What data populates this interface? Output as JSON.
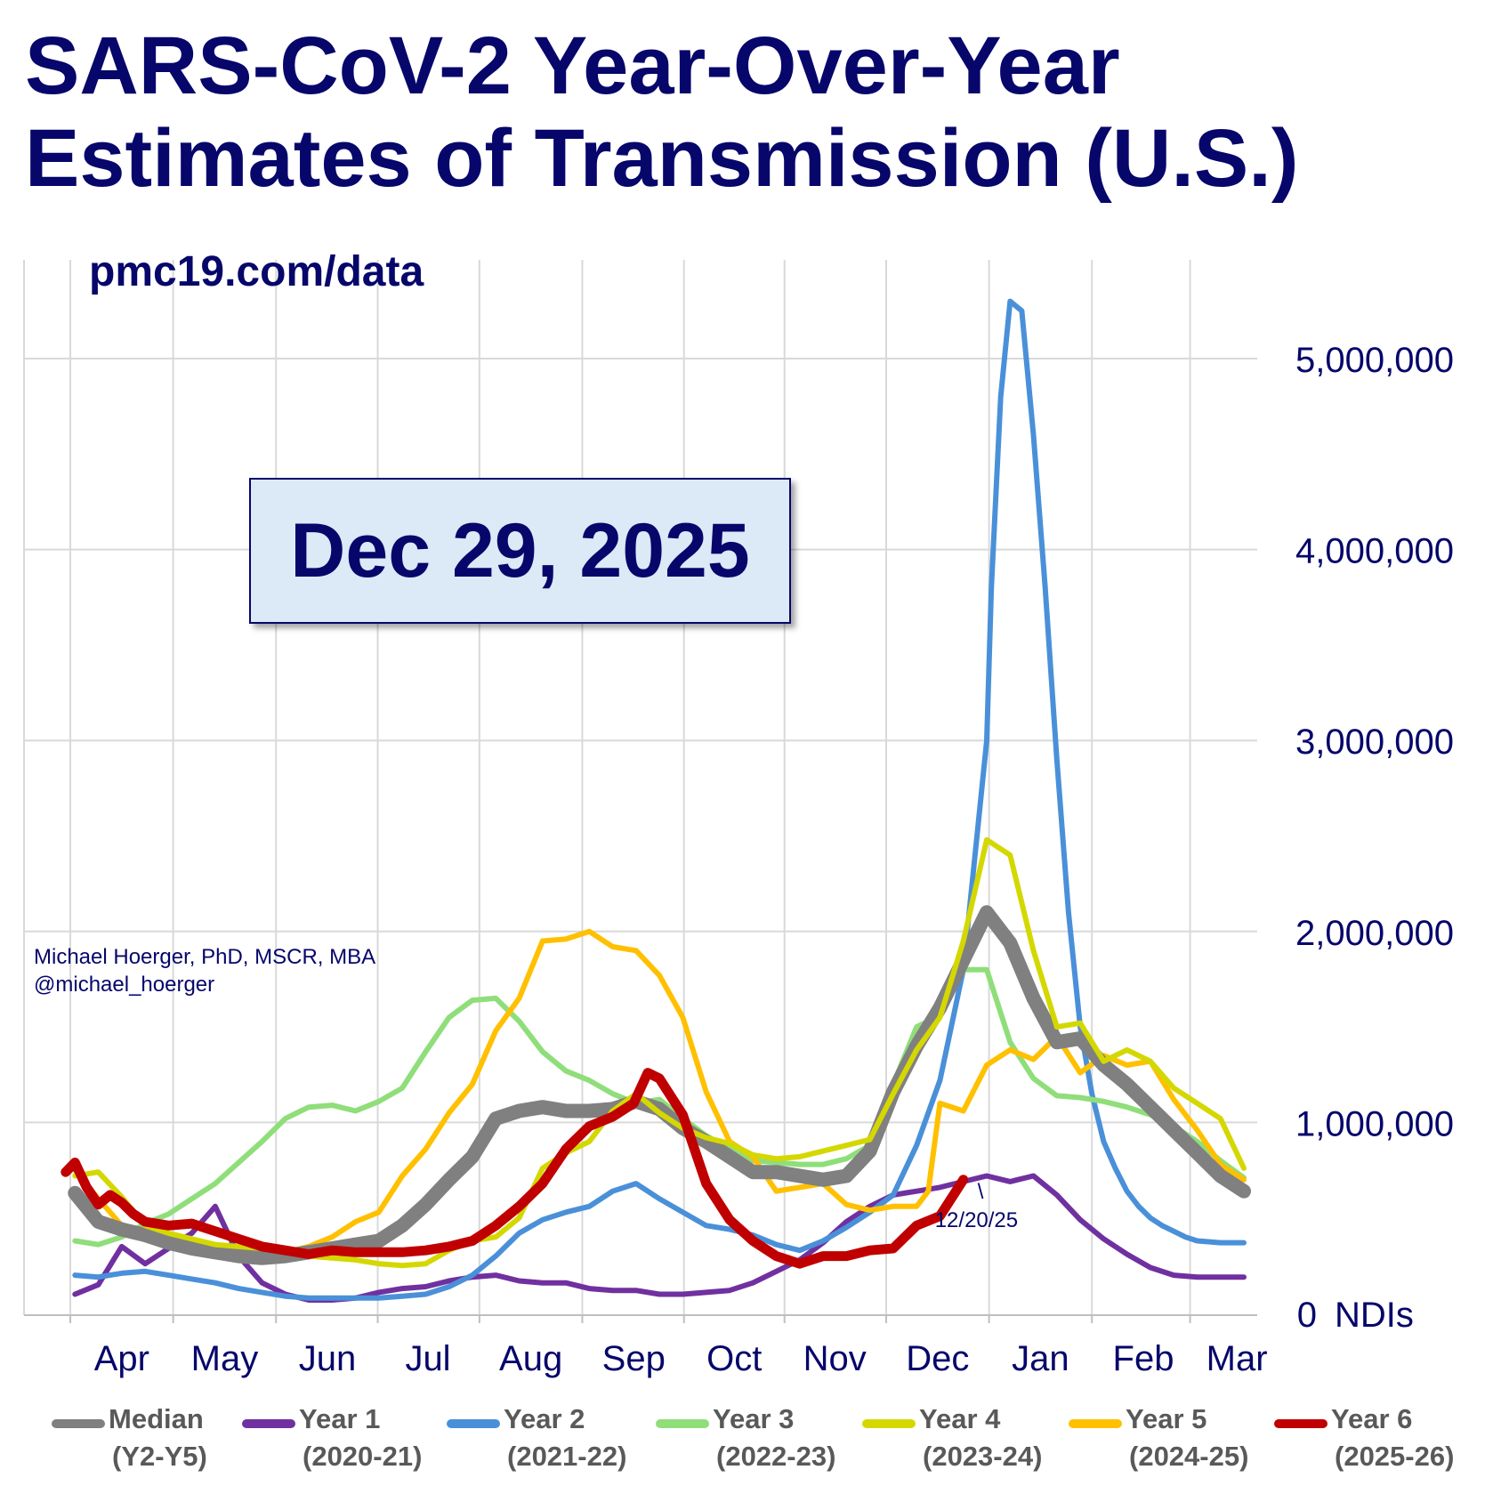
{
  "title_line1": "SARS-CoV-2 Year-Over-Year",
  "title_line2": "Estimates of Transmission (U.S.)",
  "subtitle": "pmc19.com/data",
  "date_box": "Dec 29, 2025",
  "author_line1": "Michael Hoerger, PhD, MSCR, MBA",
  "author_line2": "@michael_hoerger",
  "annotation": {
    "tick": "\\",
    "text": "12/20/25"
  },
  "chart_data": {
    "type": "line",
    "ylabel": "",
    "y_unit_label": "NDIs",
    "ylim": [
      0,
      5000000
    ],
    "y_ticks": [
      0,
      1000000,
      2000000,
      3000000,
      4000000,
      5000000
    ],
    "y_tick_labels": [
      "0",
      "1,000,000",
      "2,000,000",
      "3,000,000",
      "4,000,000",
      "5,000,000"
    ],
    "x_range_weeks": [
      0,
      51
    ],
    "x_tick_positions_weeks": [
      3,
      7.4,
      11.8,
      16.1,
      20.5,
      24.9,
      29.2,
      33.5,
      37.9,
      42.3,
      46.7,
      50.7
    ],
    "x_tick_labels": [
      "Apr",
      "May",
      "Jun",
      "Jul",
      "Aug",
      "Sep",
      "Oct",
      "Nov",
      "Dec",
      "Jan",
      "Feb",
      "Mar"
    ],
    "grid": true,
    "legend_position": "bottom",
    "series": [
      {
        "name": "Median",
        "sub": "(Y2-Y5)",
        "color": "#808080",
        "width": 16,
        "x": [
          1,
          2,
          3,
          4,
          5,
          6,
          7,
          8,
          9,
          10,
          11,
          12,
          13,
          14,
          15,
          16,
          17,
          18,
          19,
          20,
          21,
          22,
          23,
          24,
          25,
          26,
          27,
          28,
          29,
          30,
          31,
          32,
          33,
          34,
          35,
          36,
          37,
          38,
          39,
          40,
          41,
          42,
          43,
          44,
          45,
          46,
          47,
          48,
          49,
          50,
          51
        ],
        "values": [
          630000,
          480000,
          440000,
          410000,
          370000,
          340000,
          320000,
          300000,
          290000,
          300000,
          320000,
          340000,
          360000,
          380000,
          460000,
          570000,
          700000,
          820000,
          1020000,
          1060000,
          1080000,
          1060000,
          1060000,
          1070000,
          1110000,
          1070000,
          970000,
          900000,
          820000,
          740000,
          740000,
          720000,
          700000,
          720000,
          850000,
          1160000,
          1400000,
          1600000,
          1850000,
          2100000,
          1940000,
          1650000,
          1420000,
          1440000,
          1300000,
          1200000,
          1080000,
          960000,
          840000,
          720000,
          640000
        ]
      },
      {
        "name": "Year 1",
        "sub": "(2020-21)",
        "color": "#7030a0",
        "width": 6,
        "x": [
          1,
          2,
          3,
          4,
          5,
          6,
          7,
          8,
          9,
          10,
          11,
          12,
          13,
          14,
          15,
          16,
          17,
          18,
          19,
          20,
          21,
          22,
          23,
          24,
          25,
          26,
          27,
          28,
          29,
          30,
          31,
          32,
          33,
          34,
          35,
          36,
          37,
          38,
          39,
          40,
          41,
          42,
          43,
          44,
          45,
          46,
          47,
          48,
          49,
          50,
          51
        ],
        "values": [
          100000,
          150000,
          350000,
          260000,
          340000,
          420000,
          560000,
          300000,
          160000,
          100000,
          70000,
          70000,
          80000,
          110000,
          130000,
          140000,
          170000,
          190000,
          200000,
          170000,
          160000,
          160000,
          130000,
          120000,
          120000,
          100000,
          100000,
          110000,
          120000,
          160000,
          220000,
          280000,
          370000,
          480000,
          560000,
          620000,
          640000,
          660000,
          690000,
          720000,
          690000,
          720000,
          620000,
          490000,
          390000,
          310000,
          240000,
          200000,
          190000,
          190000,
          190000
        ]
      },
      {
        "name": "Year 2",
        "sub": "(2021-22)",
        "color": "#4a90d9",
        "width": 6,
        "x": [
          1,
          2,
          3,
          4,
          5,
          6,
          7,
          8,
          9,
          10,
          11,
          12,
          13,
          14,
          15,
          16,
          17,
          18,
          19,
          20,
          21,
          22,
          23,
          24,
          25,
          26,
          27,
          28,
          29,
          30,
          31,
          32,
          33,
          34,
          35,
          36,
          37,
          38,
          39,
          40,
          40.2,
          40.6,
          41,
          41.5,
          42,
          42.5,
          43,
          43.5,
          44,
          44.5,
          45,
          45.5,
          46,
          46.5,
          47,
          47.5,
          48,
          48.5,
          49,
          50,
          51
        ],
        "values": [
          200000,
          190000,
          210000,
          220000,
          200000,
          180000,
          160000,
          130000,
          110000,
          90000,
          80000,
          80000,
          80000,
          80000,
          90000,
          100000,
          140000,
          200000,
          300000,
          420000,
          490000,
          530000,
          560000,
          640000,
          680000,
          600000,
          530000,
          460000,
          440000,
          410000,
          360000,
          330000,
          380000,
          450000,
          530000,
          620000,
          880000,
          1220000,
          1800000,
          3000000,
          3800000,
          4800000,
          5300000,
          5250000,
          4600000,
          3800000,
          2900000,
          2100000,
          1500000,
          1150000,
          900000,
          760000,
          640000,
          560000,
          500000,
          460000,
          430000,
          400000,
          380000,
          370000,
          370000
        ]
      },
      {
        "name": "Year 3",
        "sub": "(2022-23)",
        "color": "#8fde7a",
        "width": 6,
        "x": [
          1,
          2,
          3,
          4,
          5,
          6,
          7,
          8,
          9,
          10,
          11,
          12,
          13,
          14,
          15,
          16,
          17,
          18,
          19,
          20,
          21,
          22,
          23,
          24,
          25,
          26,
          27,
          28,
          29,
          30,
          31,
          32,
          33,
          34,
          35,
          36,
          37,
          38,
          39,
          40,
          41,
          42,
          43,
          44,
          45,
          46,
          47,
          48,
          49,
          50,
          51
        ],
        "values": [
          380000,
          360000,
          400000,
          470000,
          520000,
          600000,
          680000,
          790000,
          900000,
          1020000,
          1080000,
          1090000,
          1060000,
          1110000,
          1180000,
          1370000,
          1550000,
          1640000,
          1650000,
          1530000,
          1370000,
          1270000,
          1220000,
          1150000,
          1100000,
          1120000,
          1020000,
          930000,
          860000,
          800000,
          790000,
          780000,
          780000,
          810000,
          880000,
          1200000,
          1500000,
          1560000,
          1800000,
          1800000,
          1420000,
          1230000,
          1140000,
          1130000,
          1110000,
          1080000,
          1040000,
          980000,
          900000,
          800000,
          710000
        ]
      },
      {
        "name": "Year 4",
        "sub": "(2023-24)",
        "color": "#d4d800",
        "width": 6,
        "x": [
          1,
          2,
          3,
          4,
          5,
          6,
          7,
          8,
          9,
          10,
          11,
          12,
          13,
          14,
          15,
          16,
          17,
          18,
          19,
          20,
          21,
          22,
          23,
          24,
          25,
          26,
          27,
          28,
          29,
          30,
          31,
          32,
          33,
          34,
          35,
          36,
          37,
          38,
          39,
          40,
          41,
          42,
          43,
          44,
          45,
          46,
          47,
          48,
          49,
          50,
          51
        ],
        "values": [
          720000,
          740000,
          610000,
          460000,
          420000,
          390000,
          360000,
          350000,
          340000,
          320000,
          300000,
          290000,
          280000,
          260000,
          250000,
          260000,
          330000,
          380000,
          400000,
          500000,
          760000,
          840000,
          900000,
          1060000,
          1150000,
          1050000,
          970000,
          920000,
          890000,
          830000,
          810000,
          820000,
          850000,
          880000,
          910000,
          1150000,
          1380000,
          1550000,
          1950000,
          2480000,
          2400000,
          1900000,
          1500000,
          1520000,
          1320000,
          1380000,
          1320000,
          1180000,
          1100000,
          1020000,
          760000
        ]
      },
      {
        "name": "Year 5",
        "sub": "(2024-25)",
        "color": "#ffc000",
        "width": 6,
        "x": [
          1,
          2,
          3,
          4,
          5,
          6,
          7,
          8,
          9,
          10,
          11,
          12,
          13,
          14,
          15,
          16,
          17,
          18,
          19,
          20,
          21,
          22,
          23,
          24,
          25,
          26,
          27,
          28,
          29,
          30,
          31,
          32,
          33,
          34,
          35,
          36,
          37,
          37.5,
          38,
          38.5,
          39,
          40,
          41,
          42,
          43,
          44,
          45,
          46,
          47,
          48,
          49,
          50,
          51
        ],
        "values": [
          750000,
          600000,
          460000,
          420000,
          390000,
          370000,
          350000,
          340000,
          330000,
          320000,
          350000,
          400000,
          480000,
          530000,
          720000,
          860000,
          1050000,
          1200000,
          1480000,
          1650000,
          1950000,
          1960000,
          2000000,
          1920000,
          1900000,
          1770000,
          1550000,
          1160000,
          900000,
          820000,
          640000,
          660000,
          680000,
          570000,
          540000,
          560000,
          560000,
          640000,
          1100000,
          1080000,
          1060000,
          1300000,
          1380000,
          1330000,
          1450000,
          1260000,
          1350000,
          1300000,
          1320000,
          1120000,
          960000,
          780000,
          700000
        ]
      },
      {
        "name": "Year 6",
        "sub": "(2025-26)",
        "color": "#c00000",
        "width": 11,
        "x": [
          0.6,
          1,
          1.5,
          2,
          2.5,
          3,
          3.5,
          4,
          5,
          6,
          7,
          8,
          9,
          10,
          11,
          12,
          13,
          14,
          15,
          16,
          17,
          18,
          19,
          20,
          21,
          22,
          23,
          24,
          24.9,
          25.5,
          26,
          27,
          28,
          29,
          30,
          31,
          32,
          33,
          34,
          35,
          36,
          37,
          38,
          39
        ],
        "values": [
          740000,
          790000,
          660000,
          570000,
          620000,
          580000,
          520000,
          480000,
          460000,
          470000,
          430000,
          390000,
          350000,
          330000,
          310000,
          330000,
          320000,
          320000,
          320000,
          330000,
          350000,
          380000,
          460000,
          560000,
          680000,
          860000,
          980000,
          1030000,
          1100000,
          1260000,
          1230000,
          1040000,
          680000,
          490000,
          380000,
          300000,
          260000,
          300000,
          300000,
          330000,
          340000,
          460000,
          510000,
          700000
        ]
      }
    ]
  },
  "legend": [
    {
      "name": "Median",
      "sub": "(Y2-Y5)",
      "color": "#808080"
    },
    {
      "name": "Year 1",
      "sub": "(2020-21)",
      "color": "#7030a0"
    },
    {
      "name": "Year 2",
      "sub": "(2021-22)",
      "color": "#4a90d9"
    },
    {
      "name": "Year 3",
      "sub": "(2022-23)",
      "color": "#8fde7a"
    },
    {
      "name": "Year 4",
      "sub": "(2023-24)",
      "color": "#d4d800"
    },
    {
      "name": "Year 5",
      "sub": "(2024-25)",
      "color": "#ffc000"
    },
    {
      "name": "Year 6",
      "sub": "(2025-26)",
      "color": "#c00000"
    }
  ]
}
